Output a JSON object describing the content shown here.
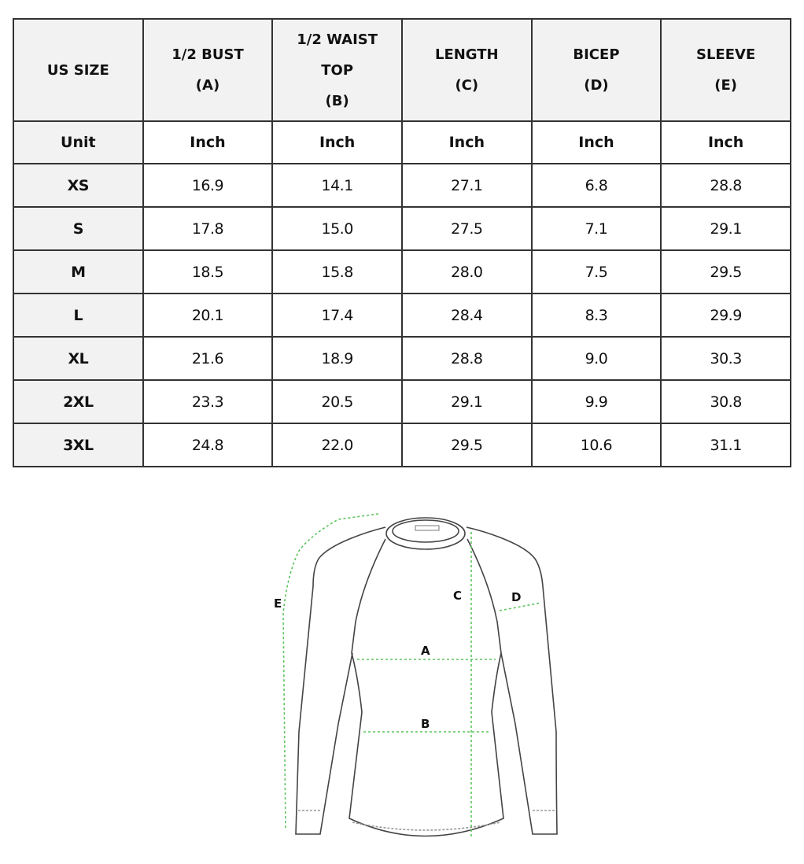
{
  "table": {
    "headers": [
      {
        "line1": "US SIZE",
        "line2": "",
        "line3": ""
      },
      {
        "line1": "1/2 BUST",
        "line2": "(A)",
        "line3": ""
      },
      {
        "line1": "1/2 WAIST",
        "line2": "TOP",
        "line3": "(B)"
      },
      {
        "line1": "LENGTH",
        "line2": "(C)",
        "line3": ""
      },
      {
        "line1": "BICEP",
        "line2": "(D)",
        "line3": ""
      },
      {
        "line1": "SLEEVE",
        "line2": "(E)",
        "line3": ""
      }
    ],
    "unit_row": [
      "Unit",
      "Inch",
      "Inch",
      "Inch",
      "Inch",
      "Inch"
    ],
    "rows": [
      [
        "XS",
        "16.9",
        "14.1",
        "27.1",
        "6.8",
        "28.8"
      ],
      [
        "S",
        "17.8",
        "15.0",
        "27.5",
        "7.1",
        "29.1"
      ],
      [
        "M",
        "18.5",
        "15.8",
        "28.0",
        "7.5",
        "29.5"
      ],
      [
        "L",
        "20.1",
        "17.4",
        "28.4",
        "8.3",
        "29.9"
      ],
      [
        "XL",
        "21.6",
        "18.9",
        "28.8",
        "9.0",
        "30.3"
      ],
      [
        "2XL",
        "23.3",
        "20.5",
        "29.1",
        "9.9",
        "30.8"
      ],
      [
        "3XL",
        "24.8",
        "22.0",
        "29.5",
        "10.6",
        "31.1"
      ]
    ]
  },
  "diagram": {
    "labels": {
      "a": "A",
      "b": "B",
      "c": "C",
      "d": "D",
      "e": "E"
    },
    "measure_color": "#5cc45c",
    "outline_color": "#444444"
  }
}
